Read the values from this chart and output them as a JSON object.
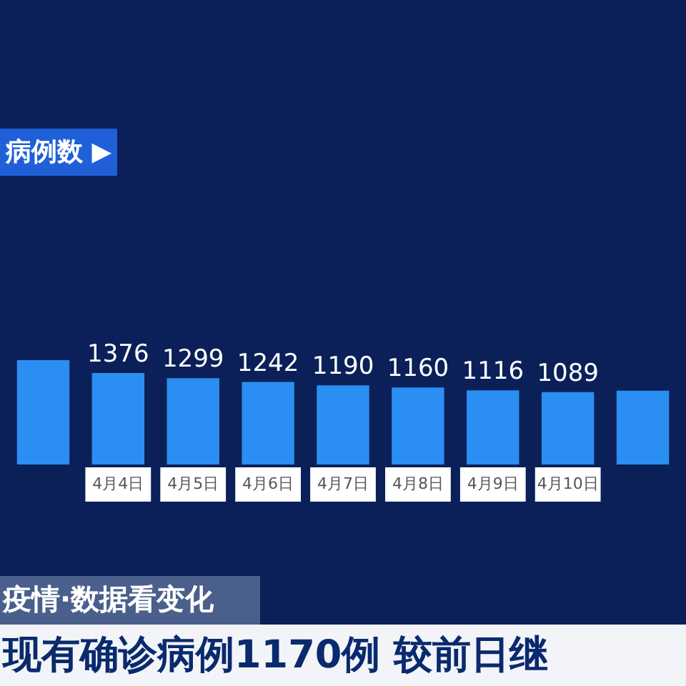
{
  "chart_data": {
    "type": "bar",
    "title": "病例数 ▶",
    "categories": [
      null,
      "4月4日",
      "4月5日",
      "4月6日",
      "4月7日",
      "4月8日",
      "4月9日",
      "4月10日",
      null
    ],
    "values": [
      1570,
      1376,
      1299,
      1242,
      1190,
      1160,
      1116,
      1089,
      1110
    ],
    "value_labels": [
      null,
      "1376",
      "1299",
      "1242",
      "1190",
      "1160",
      "1116",
      "1089",
      null
    ],
    "color": "#2b8ef2",
    "annotations": [
      "疫情·数据看变化",
      "现有确诊病例1170例 较前日继"
    ]
  }
}
